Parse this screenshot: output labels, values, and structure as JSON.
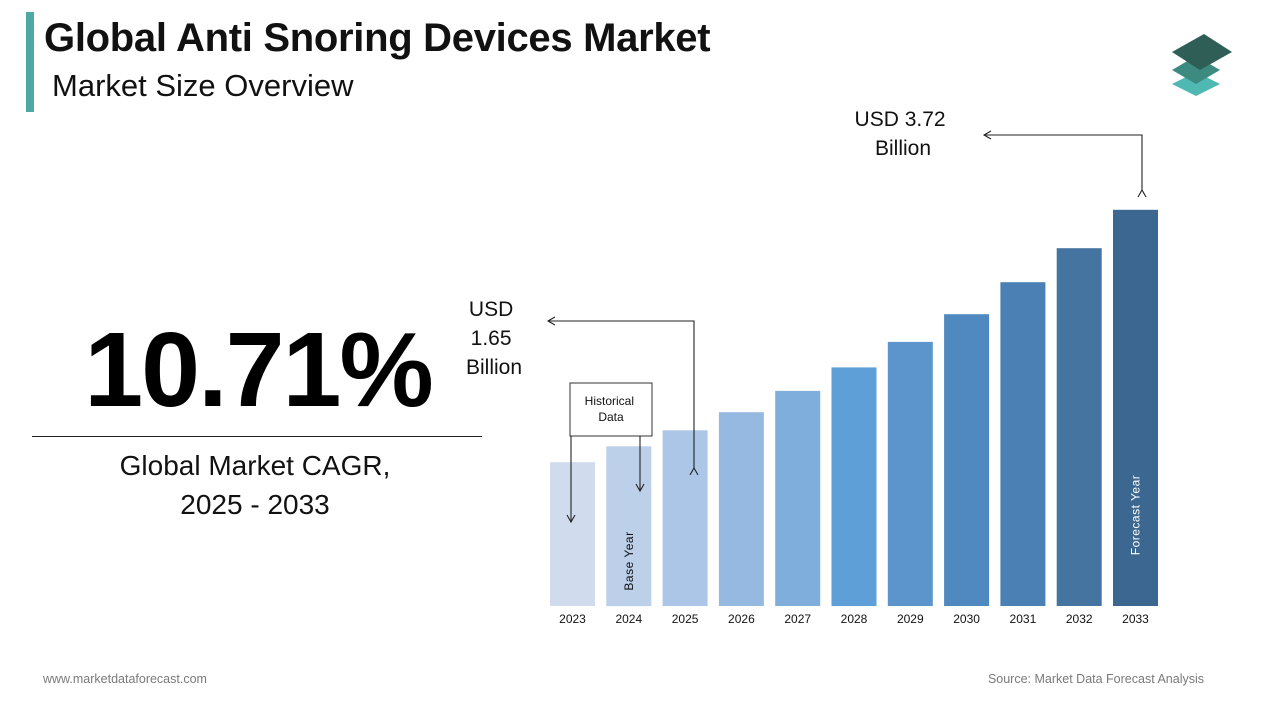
{
  "header": {
    "title": "Global Anti Snoring Devices Market",
    "subtitle": "Market Size Overview"
  },
  "cagr": {
    "value": "10.71%",
    "label": "Global Market CAGR,\n2025 - 2033"
  },
  "colors": {
    "accent": "#4ea8a6",
    "logo_top": "#2f5e57",
    "logo_mid": "#3c8a80",
    "logo_bottom": "#4fb8b2"
  },
  "chart_data": {
    "type": "bar",
    "categories": [
      "2023",
      "2024",
      "2025",
      "2026",
      "2027",
      "2028",
      "2029",
      "2030",
      "2031",
      "2032",
      "2033"
    ],
    "values": [
      1.35,
      1.5,
      1.65,
      1.82,
      2.02,
      2.24,
      2.48,
      2.74,
      3.04,
      3.36,
      3.72
    ],
    "bar_colors": [
      "#d0dcee",
      "#bdd0e9",
      "#abc6e6",
      "#96b9e1",
      "#80aedc",
      "#5f9fd7",
      "#5b95cc",
      "#5089bf",
      "#4a80b3",
      "#44749f",
      "#3c6790"
    ],
    "annotations": {
      "start_value": "USD\n1.65\nBillion",
      "end_value": "USD 3.72\nBillion",
      "historical": "Historical\nData",
      "base_year": "Base Year",
      "forecast_year": "Forecast Year"
    }
  },
  "footer": {
    "website": "www.marketdataforecast.com",
    "source": "Source: Market Data Forecast Analysis"
  }
}
